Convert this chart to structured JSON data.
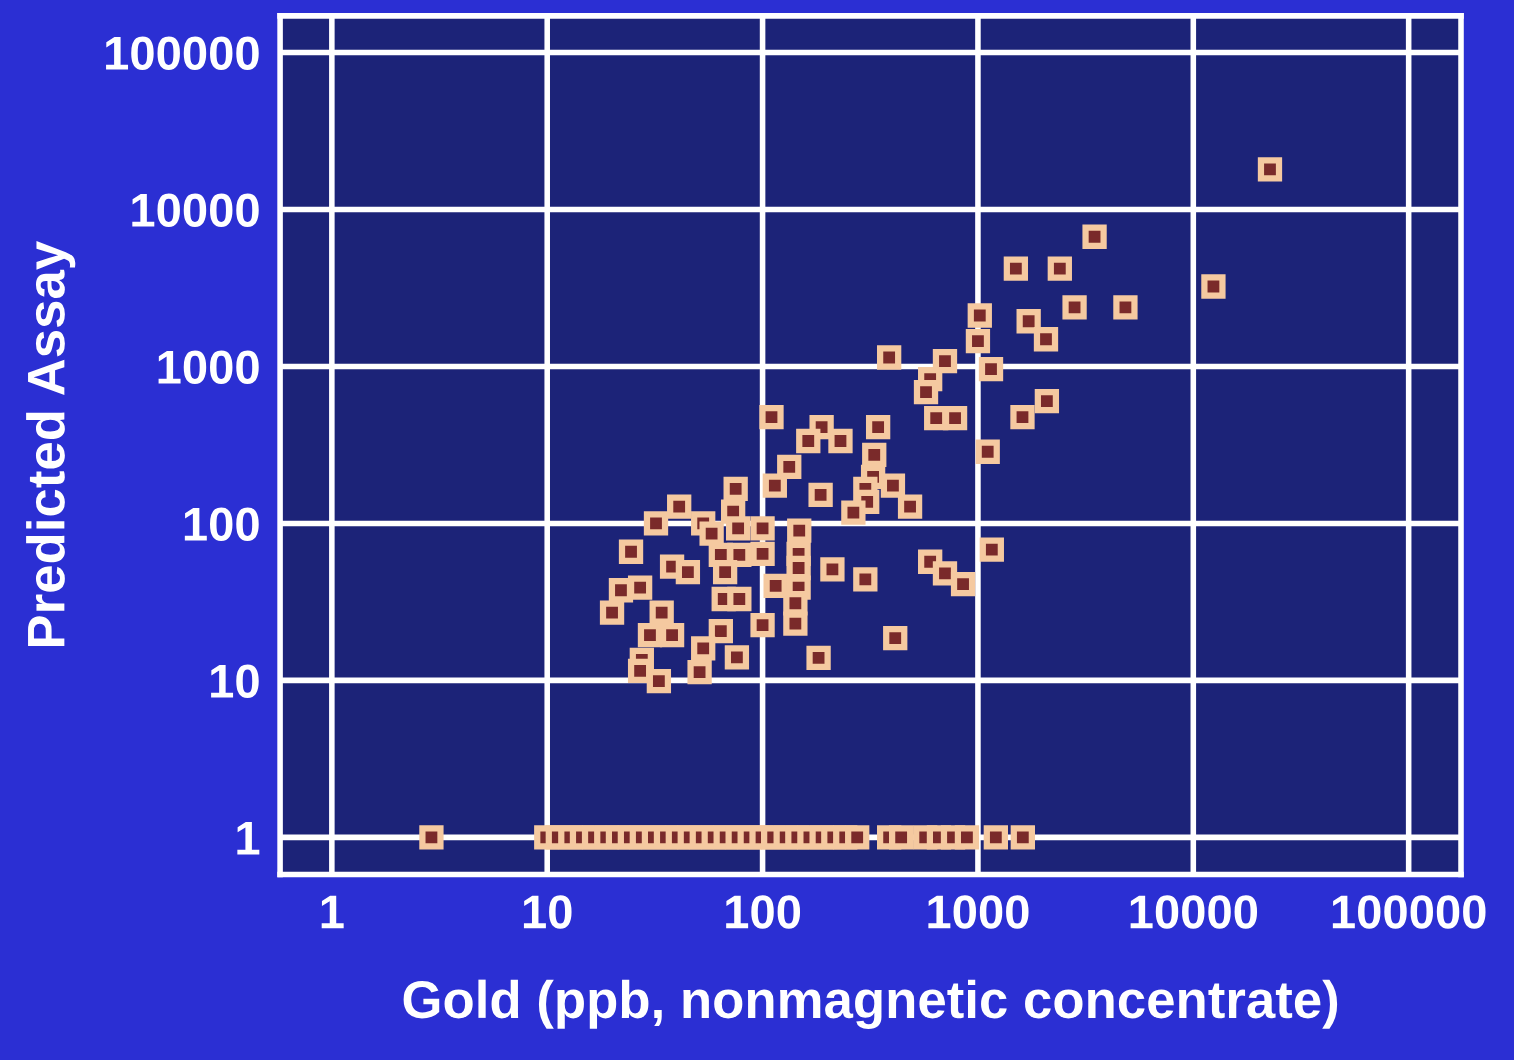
{
  "chart_data": {
    "type": "scatter",
    "xlabel": "Gold (ppb, nonmagnetic concentrate)",
    "ylabel": "Predicted Assay",
    "log": "xy",
    "grid": true,
    "marker": "square",
    "xlim": [
      0.575,
      175000
    ],
    "ylim": [
      0.58,
      171000
    ],
    "xticks": [
      1,
      10,
      100,
      1000,
      10000,
      100000
    ],
    "yticks": [
      1,
      10,
      100,
      1000,
      10000,
      100000
    ],
    "series": [
      {
        "color": "#f5c9a0",
        "x": [
          22700,
          3480,
          1500,
          2400,
          12400,
          2810,
          4840,
          1020,
          1720,
          2070,
          1000,
          387,
          703,
          600,
          1150,
          574,
          2090,
          640,
          783,
          1610,
          1110,
          110,
          188,
          344,
          163,
          230,
          330,
          133,
          326,
          403,
          300,
          114,
          75,
          186,
          306,
          264,
          484,
          41,
          73,
          148,
          32,
          53,
          58,
          77,
          100,
          100,
          24.5,
          64,
          78,
          147,
          67,
          147,
          211,
          300,
          600,
          703,
          853,
          1160,
          38,
          45,
          115,
          147,
          22,
          27,
          20,
          34,
          66,
          78,
          142,
          142,
          30,
          38,
          64,
          100,
          53,
          76,
          182,
          413,
          27.5,
          27,
          33,
          51,
          2.9,
          9.9,
          11.2,
          12.8,
          14.5,
          16.5,
          18.8,
          21.3,
          24.2,
          27.5,
          31.3,
          35.6,
          40.4,
          45.9,
          52.2,
          59.3,
          67.4,
          76.6,
          87.1,
          98.9,
          112,
          128,
          145,
          165,
          188,
          213,
          242,
          275,
          387,
          440,
          569,
          659,
          766,
          889,
          1211,
          1616
        ],
        "values": [
          18000,
          6700,
          4200,
          4200,
          3230,
          2380,
          2380,
          2110,
          1940,
          1490,
          1450,
          1140,
          1080,
          830,
          960,
          686,
          601,
          469,
          469,
          476,
          286,
          476,
          411,
          411,
          335,
          335,
          273,
          229,
          198,
          174,
          166,
          174,
          166,
          152,
          137,
          117,
          128,
          128,
          119,
          90,
          100,
          100,
          86,
          93,
          93,
          64,
          66,
          63,
          63,
          64,
          49,
          52,
          51,
          44,
          57,
          48,
          41,
          68,
          53,
          49,
          40,
          39,
          37.5,
          39,
          27,
          27,
          33,
          33,
          31,
          23,
          19.4,
          19.4,
          20.6,
          22.5,
          16,
          14,
          13.9,
          18.6,
          13.5,
          11.5,
          9.9,
          11.3,
          1,
          1,
          1,
          1,
          1,
          1,
          1,
          1,
          1,
          1,
          1,
          1,
          1,
          1,
          1,
          1,
          1,
          1,
          1,
          1,
          1,
          1,
          1,
          1,
          1,
          1,
          1,
          1,
          1,
          1,
          1,
          1,
          1,
          1,
          1,
          1
        ]
      }
    ]
  }
}
